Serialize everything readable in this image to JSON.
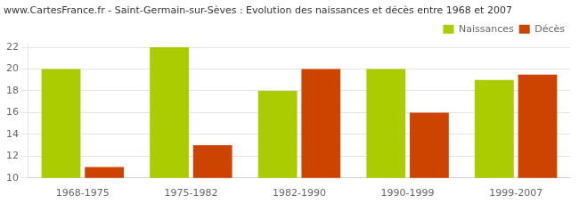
{
  "chart_data": {
    "type": "bar",
    "title": "www.CartesFrance.fr - Saint-Germain-sur-Sèves : Evolution des naissances et décès entre 1968 et 2007",
    "categories": [
      "1968-1975",
      "1975-1982",
      "1982-1990",
      "1990-1999",
      "1999-2007"
    ],
    "series": [
      {
        "name": "Naissances",
        "color": "#aacc00",
        "values": [
          20,
          22,
          18,
          20,
          19
        ]
      },
      {
        "name": "Décès",
        "color": "#cc4400",
        "values": [
          11,
          13,
          20,
          16,
          19.5
        ]
      }
    ],
    "ylim": [
      10,
      22.4
    ],
    "yticks": [
      10,
      12,
      14,
      16,
      18,
      20,
      22
    ],
    "grid": true,
    "legend": "upper right"
  }
}
